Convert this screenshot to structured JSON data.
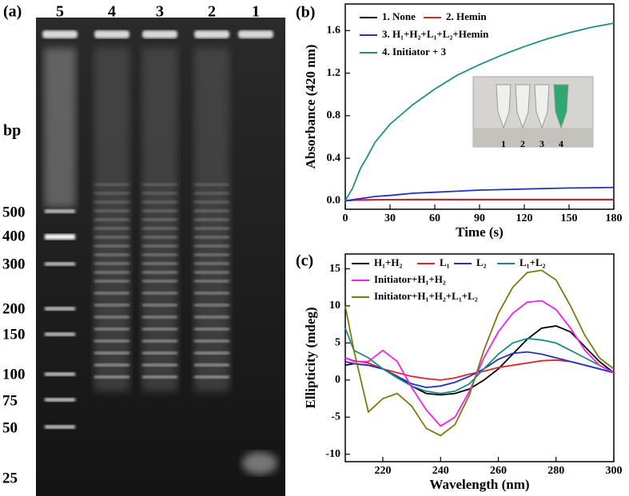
{
  "gel": {
    "panel_label": "(a)",
    "lane_labels": [
      "5",
      "4",
      "3",
      "2",
      "1"
    ],
    "unit_label": "bp",
    "marker_labels": [
      "500",
      "400",
      "300",
      "200",
      "150",
      "100",
      "75",
      "50",
      "25"
    ]
  },
  "chart_data": [
    {
      "type": "line",
      "panel_label": "(b)",
      "xlabel": "Time (s)",
      "ylabel": "Absorbance (420 nm)",
      "x": [
        0,
        5,
        10,
        15,
        20,
        30,
        45,
        60,
        75,
        90,
        105,
        120,
        135,
        150,
        165,
        180
      ],
      "xlim": [
        0,
        180
      ],
      "xticks": [
        0,
        30,
        60,
        90,
        120,
        150,
        180
      ],
      "ylim": [
        -0.08,
        1.85
      ],
      "yticks": [
        {
          "value": 0,
          "label": "0.0"
        },
        {
          "value": 0.4,
          "label": "0.4"
        },
        {
          "value": 0.8,
          "label": "0.8"
        },
        {
          "value": 1.2,
          "label": "1.2"
        },
        {
          "value": 1.6,
          "label": "1.6"
        }
      ],
      "legend": "upper left",
      "series": [
        {
          "name": "1. None",
          "color": "#000000",
          "values": [
            0,
            0.005,
            0.007,
            0.008,
            0.009,
            0.01,
            0.01,
            0.01,
            0.01,
            0.01,
            0.01,
            0.01,
            0.01,
            0.01,
            0.01,
            0.01
          ]
        },
        {
          "name": "2. Hemin",
          "color": "#e8202a",
          "values": [
            0,
            0.006,
            0.008,
            0.009,
            0.01,
            0.011,
            0.012,
            0.012,
            0.012,
            0.013,
            0.013,
            0.013,
            0.013,
            0.013,
            0.013,
            0.013
          ]
        },
        {
          "name": "3. H₁+H₂+L₁+L₂+Hemin",
          "color": "#2230c8",
          "values": [
            0,
            0.01,
            0.02,
            0.03,
            0.04,
            0.05,
            0.07,
            0.08,
            0.09,
            0.1,
            0.105,
            0.11,
            0.115,
            0.12,
            0.122,
            0.125
          ]
        },
        {
          "name": "4. Initiator + 3",
          "color": "#1e9080",
          "values": [
            0,
            0.12,
            0.3,
            0.42,
            0.55,
            0.72,
            0.9,
            1.05,
            1.18,
            1.28,
            1.37,
            1.45,
            1.52,
            1.58,
            1.63,
            1.67
          ]
        }
      ],
      "inset_labels": [
        "1",
        "2",
        "3",
        "4"
      ]
    },
    {
      "type": "line",
      "panel_label": "(c)",
      "xlabel": "Wavelength (nm)",
      "ylabel": "Ellipticity (mdeg)",
      "x": [
        207,
        210,
        215,
        220,
        225,
        230,
        235,
        240,
        245,
        250,
        255,
        260,
        265,
        270,
        275,
        280,
        285,
        290,
        295,
        300
      ],
      "xlim": [
        207,
        300
      ],
      "xticks": [
        220,
        240,
        260,
        280,
        300
      ],
      "ylim": [
        -11,
        17
      ],
      "yticks": [
        -10,
        -5,
        0,
        5,
        10,
        15
      ],
      "legend": "upper left",
      "series": [
        {
          "name": "H₁+H₂",
          "color": "#000000",
          "values": [
            2,
            2.2,
            2,
            1.5,
            0.5,
            -0.8,
            -1.8,
            -2,
            -1.8,
            -1.2,
            0,
            1.5,
            3.5,
            5.5,
            7,
            7.3,
            6.5,
            4.5,
            2.5,
            1
          ]
        },
        {
          "name": "L₁",
          "color": "#e8202a",
          "values": [
            3,
            2.6,
            2.3,
            1.5,
            1,
            0.5,
            0.2,
            0,
            0.3,
            0.8,
            1.2,
            1.7,
            2,
            2.3,
            2.6,
            2.7,
            2.5,
            2,
            1.5,
            1
          ]
        },
        {
          "name": "L₂",
          "color": "#2230c8",
          "values": [
            2.5,
            2.2,
            2,
            1.5,
            0.5,
            -0.5,
            -1,
            -0.8,
            -0.3,
            0.5,
            1.5,
            2.8,
            3.6,
            3.8,
            3.5,
            3,
            2.5,
            2,
            1.5,
            1
          ]
        },
        {
          "name": "L₁+L₂",
          "color": "#1e8a80",
          "values": [
            7,
            4,
            3,
            1.5,
            0.3,
            -0.8,
            -1.5,
            -1.8,
            -1.5,
            -0.5,
            1.5,
            3.5,
            5,
            5.6,
            5.4,
            5,
            4,
            3,
            2,
            1
          ]
        },
        {
          "name": "Initiator+H₁+H₂",
          "color": "#f020f0",
          "values": [
            3,
            2.5,
            2.5,
            4,
            2.5,
            -1,
            -4,
            -6.2,
            -5,
            -1.5,
            3,
            6.5,
            9,
            10.5,
            10.7,
            9.5,
            7,
            4,
            2,
            1
          ]
        },
        {
          "name": "Initiator+H₁+H₂+L₁+L₂",
          "color": "#7a7a10",
          "values": [
            10,
            4,
            -4.3,
            -2.5,
            -1.8,
            -3.5,
            -6.5,
            -7.5,
            -6,
            -2,
            4,
            9,
            12.5,
            14.5,
            14.8,
            13.5,
            10,
            6,
            3,
            1.5
          ]
        }
      ]
    }
  ]
}
